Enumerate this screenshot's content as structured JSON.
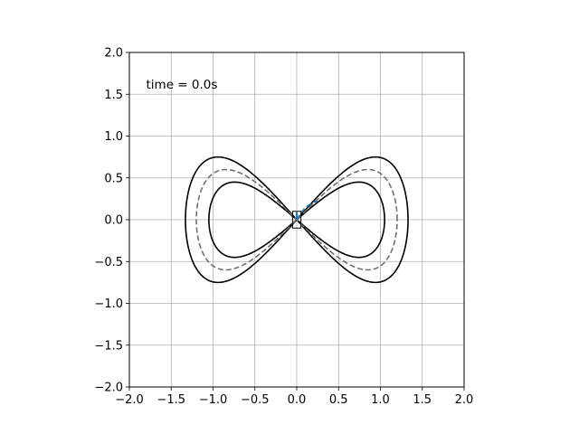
{
  "chart_data": {
    "type": "line",
    "title": "",
    "xlabel": "",
    "ylabel": "",
    "xlim": [
      -2.0,
      2.0
    ],
    "ylim": [
      -2.0,
      2.0
    ],
    "grid": true,
    "aspect": "equal",
    "x_ticks": [
      -2.0,
      -1.5,
      -1.0,
      -0.5,
      0.0,
      0.5,
      1.0,
      1.5,
      2.0
    ],
    "y_ticks": [
      -2.0,
      -1.5,
      -1.0,
      -0.5,
      0.0,
      0.5,
      1.0,
      1.5,
      2.0
    ],
    "x_tick_labels": [
      "−2.0",
      "−1.5",
      "−1.0",
      "−0.5",
      "0.0",
      "0.5",
      "1.0",
      "1.5",
      "2.0"
    ],
    "y_tick_labels": [
      "−2.0",
      "−1.5",
      "−1.0",
      "−0.5",
      "0.0",
      "0.5",
      "1.0",
      "1.5",
      "2.0"
    ],
    "annotation": {
      "text": "time = 0.0s",
      "x": -1.8,
      "y": 1.62
    },
    "series": [
      {
        "style": "solid",
        "color": "#000000",
        "shape": "lemniscate-of-gerono",
        "x_amplitude": 1.33,
        "y_amplitude": 0.75
      },
      {
        "style": "solid",
        "color": "#000000",
        "shape": "lemniscate-of-gerono",
        "x_amplitude": 1.05,
        "y_amplitude": 0.45
      },
      {
        "style": "dashed",
        "color": "#707070",
        "shape": "lemniscate-of-gerono",
        "x_amplitude": 1.2,
        "y_amplitude": 0.6
      },
      {
        "style": "dashed",
        "color": "#1f77b4",
        "x": [
          0.0,
          0.04,
          0.09,
          0.15,
          0.2,
          0.25
        ],
        "y": [
          0.0,
          0.07,
          0.13,
          0.18,
          0.21,
          0.22
        ]
      }
    ],
    "vehicle": {
      "x": 0.0,
      "y": 0.0,
      "length": 0.2,
      "width": 0.1,
      "heading_deg": 90,
      "color": "#000000"
    }
  }
}
